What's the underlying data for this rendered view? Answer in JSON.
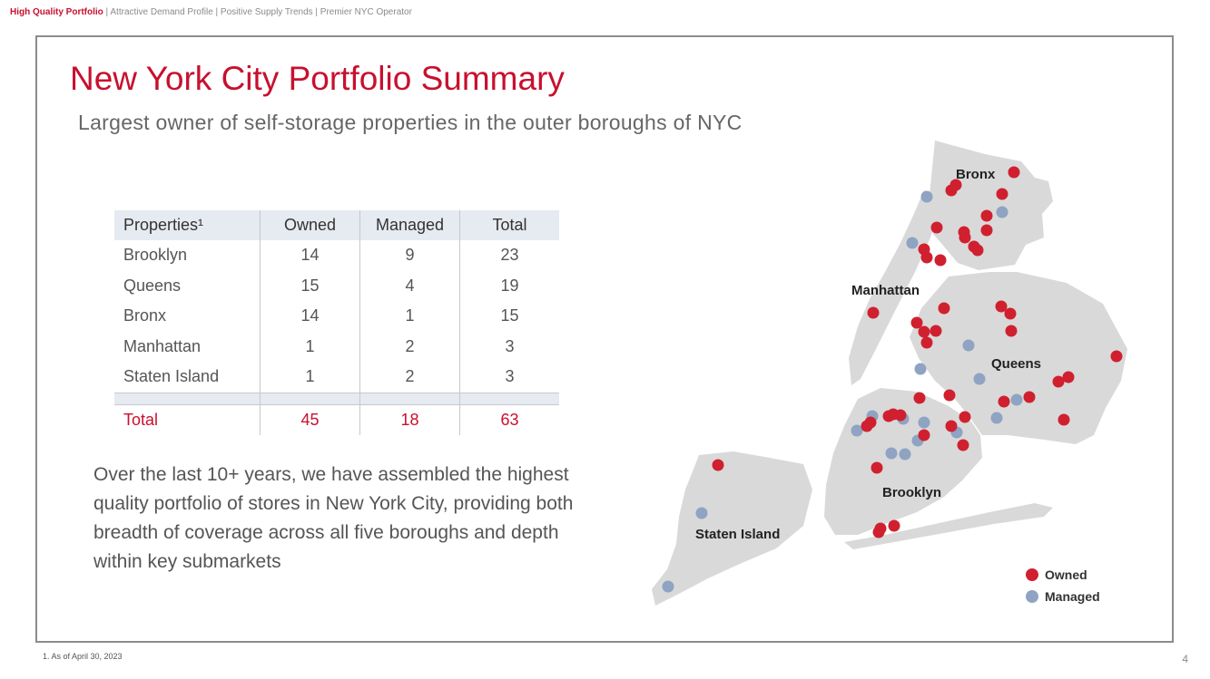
{
  "header": {
    "active_section": "High Quality Portfolio",
    "rest": " | Attractive Demand Profile | Positive Supply Trends | Premier NYC Operator"
  },
  "title": "New York City Portfolio Summary",
  "subtitle": "Largest owner of self-storage properties in the outer boroughs of NYC",
  "table": {
    "headers": [
      "Properties¹",
      "Owned",
      "Managed",
      "Total"
    ],
    "rows": [
      [
        "Brooklyn",
        "14",
        "9",
        "23"
      ],
      [
        "Queens",
        "15",
        "4",
        "19"
      ],
      [
        "Bronx",
        "14",
        "1",
        "15"
      ],
      [
        "Manhattan",
        "1",
        "2",
        "3"
      ],
      [
        "Staten Island",
        "1",
        "2",
        "3"
      ]
    ],
    "total": [
      "Total",
      "45",
      "18",
      "63"
    ]
  },
  "body_text": "Over the last 10+ years, we have assembled the highest quality portfolio of stores in New York City, providing both breadth of coverage across all five boroughs and depth within key submarkets",
  "map": {
    "labels": {
      "bronx": "Bronx",
      "manhattan": "Manhattan",
      "queens": "Queens",
      "brooklyn": "Brooklyn",
      "staten_island": "Staten Island"
    }
  },
  "legend": {
    "owned": "Owned",
    "managed": "Managed"
  },
  "colors": {
    "accent": "#c8102e",
    "owned": "#d0202f",
    "managed": "#8fa3c3",
    "land": "#d9d9d9"
  },
  "footnote": "1.    As of April 30, 2023",
  "page_number": "4"
}
